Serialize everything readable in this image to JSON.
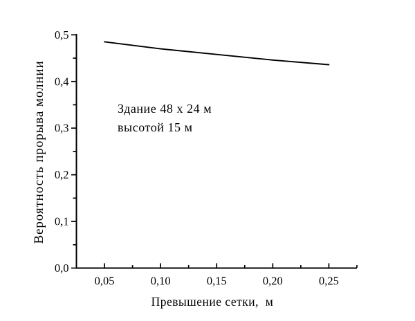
{
  "chart_data": {
    "type": "line",
    "title": "",
    "x": [
      0.05,
      0.1,
      0.15,
      0.2,
      0.25
    ],
    "series": [
      {
        "name": "Вероятность прорыва молнии",
        "values": [
          0.485,
          0.47,
          0.458,
          0.446,
          0.436
        ]
      }
    ],
    "xlabel": "Превышение сетки,  м",
    "ylabel": "Вероятность прорыва молнии",
    "xlim": [
      0.025,
      0.275
    ],
    "ylim": [
      0,
      0.502
    ],
    "x_major_ticks": [
      0.05,
      0.1,
      0.15,
      0.2,
      0.25
    ],
    "x_tick_labels": [
      "0,05",
      "0,10",
      "0,15",
      "0,20",
      "0,25"
    ],
    "x_minor_ticks": [
      0.075,
      0.125,
      0.175,
      0.225,
      0.275
    ],
    "y_major_ticks": [
      0.0,
      0.1,
      0.2,
      0.3,
      0.4,
      0.5
    ],
    "y_tick_labels": [
      "0,0",
      "0,1",
      "0,2",
      "0,3",
      "0,4",
      "0,5"
    ],
    "y_minor_ticks": [
      0.05,
      0.15,
      0.25,
      0.35,
      0.45
    ],
    "grid": false,
    "legend": false,
    "line_color": "#000000",
    "axis_color": "#000000",
    "background": "#ffffff",
    "annotation_lines": [
      "Здание 48 x 24 м",
      "высотой 15 м"
    ]
  }
}
